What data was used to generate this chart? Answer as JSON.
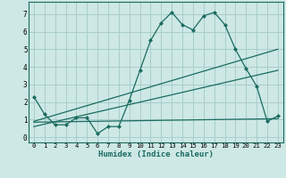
{
  "title": "",
  "xlabel": "Humidex (Indice chaleur)",
  "bg_color": "#cde8e5",
  "grid_color": "#a8ceca",
  "line_color": "#1a6b60",
  "x_ticks": [
    0,
    1,
    2,
    3,
    4,
    5,
    6,
    7,
    8,
    9,
    10,
    11,
    12,
    13,
    14,
    15,
    16,
    17,
    18,
    19,
    20,
    21,
    22,
    23
  ],
  "y_ticks": [
    0,
    1,
    2,
    3,
    4,
    5,
    6,
    7
  ],
  "ylim": [
    -0.3,
    7.7
  ],
  "xlim": [
    -0.5,
    23.5
  ],
  "curve_x": [
    0,
    1,
    2,
    3,
    4,
    5,
    6,
    7,
    8,
    9,
    10,
    11,
    12,
    13,
    14,
    15,
    16,
    17,
    18,
    19,
    20,
    21,
    22,
    23
  ],
  "curve_y": [
    2.3,
    1.3,
    0.7,
    0.7,
    1.1,
    1.1,
    0.2,
    0.6,
    0.6,
    2.1,
    3.8,
    5.5,
    6.5,
    7.1,
    6.4,
    6.1,
    6.9,
    7.1,
    6.4,
    5.0,
    3.9,
    2.9,
    0.9,
    1.2
  ],
  "line1_x": [
    0,
    23
  ],
  "line1_y": [
    0.9,
    5.0
  ],
  "line2_x": [
    0,
    23
  ],
  "line2_y": [
    0.6,
    3.8
  ],
  "line3_x": [
    0,
    23
  ],
  "line3_y": [
    0.85,
    1.05
  ]
}
